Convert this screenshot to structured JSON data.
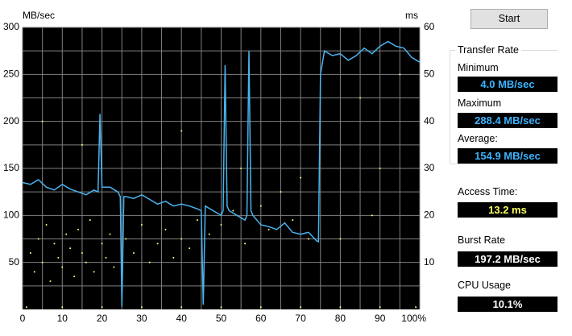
{
  "chart_data": {
    "type": "line",
    "y_label": "MB/sec",
    "y2_label": "ms",
    "xlim": [
      0,
      100
    ],
    "xticks": [
      0,
      10,
      20,
      30,
      40,
      50,
      60,
      70,
      80,
      90,
      {
        "value": 100,
        "label": "100%"
      }
    ],
    "ylim": [
      0,
      300
    ],
    "yticks": [
      50,
      100,
      150,
      200,
      250,
      300
    ],
    "y2lim": [
      0,
      60
    ],
    "y2ticks": [
      10,
      20,
      30,
      40,
      50,
      60
    ],
    "grid": true,
    "background": "#000000",
    "series": [
      {
        "type": "line",
        "color": "#48b4f0",
        "x": [
          0,
          2,
          4,
          6,
          8,
          10,
          12,
          14,
          16,
          18,
          19,
          19.5,
          20,
          22,
          24,
          24.6,
          25,
          25.5,
          26,
          28,
          30,
          32,
          34,
          36,
          38,
          40,
          42,
          44,
          45,
          45.5,
          46,
          48,
          50,
          50.5,
          51,
          51.5,
          52,
          54,
          56,
          56.5,
          57,
          57.5,
          58,
          60,
          62,
          64,
          66,
          68,
          70,
          72,
          74,
          74.5,
          75,
          76,
          78,
          80,
          82,
          84,
          86,
          88,
          90,
          92,
          94,
          96,
          98,
          100
        ],
        "values": [
          135,
          133,
          138,
          130,
          127,
          133,
          128,
          125,
          122,
          127,
          125,
          208,
          130,
          130,
          125,
          120,
          3,
          120,
          120,
          118,
          122,
          117,
          112,
          115,
          110,
          112,
          110,
          107,
          105,
          5,
          110,
          105,
          100,
          105,
          260,
          110,
          105,
          100,
          95,
          100,
          275,
          105,
          100,
          90,
          88,
          85,
          92,
          82,
          80,
          82,
          73,
          72,
          250,
          275,
          270,
          272,
          265,
          270,
          278,
          272,
          280,
          285,
          280,
          278,
          268,
          263
        ]
      },
      {
        "type": "scatter",
        "axis": "y2",
        "color": "#ffff80",
        "x": [
          2,
          3,
          4,
          5,
          6,
          7,
          8,
          9,
          10,
          11,
          12,
          13,
          14,
          15,
          16,
          17,
          18,
          20,
          21,
          22,
          23,
          26,
          28,
          30,
          32,
          34,
          36,
          38,
          40,
          42,
          44,
          47,
          50,
          53,
          56,
          60,
          62,
          65,
          68,
          70,
          72,
          15,
          40,
          5,
          55,
          85,
          90,
          95,
          80,
          88,
          1,
          10,
          20,
          30,
          40,
          50,
          60,
          70,
          80,
          90,
          99
        ],
        "values": [
          12,
          8,
          15,
          10,
          18,
          6,
          14,
          11,
          9,
          16,
          13,
          7,
          17,
          12,
          10,
          19,
          8,
          14,
          11,
          16,
          9,
          15,
          12,
          18,
          10,
          14,
          17,
          11,
          15,
          13,
          19,
          16,
          18,
          21,
          14,
          22,
          17,
          25,
          19,
          28,
          15,
          35,
          38,
          40,
          30,
          45,
          30,
          50,
          15,
          20,
          0.5,
          0.5,
          0.5,
          0.5,
          0.5,
          0.5,
          0.5,
          0.5,
          0.5,
          0.5,
          0.5
        ]
      }
    ]
  },
  "panel": {
    "start": "Start",
    "group": "Transfer Rate",
    "minimum_label": "Minimum",
    "minimum": "4.0 MB/sec",
    "maximum_label": "Maximum",
    "maximum": "288.4 MB/sec",
    "average_label": "Average:",
    "average": "154.9 MB/sec",
    "access_label": "Access Time:",
    "access": "13.2 ms",
    "burst_label": "Burst Rate",
    "burst": "197.2 MB/sec",
    "cpu_label": "CPU Usage",
    "cpu": "10.1%"
  }
}
